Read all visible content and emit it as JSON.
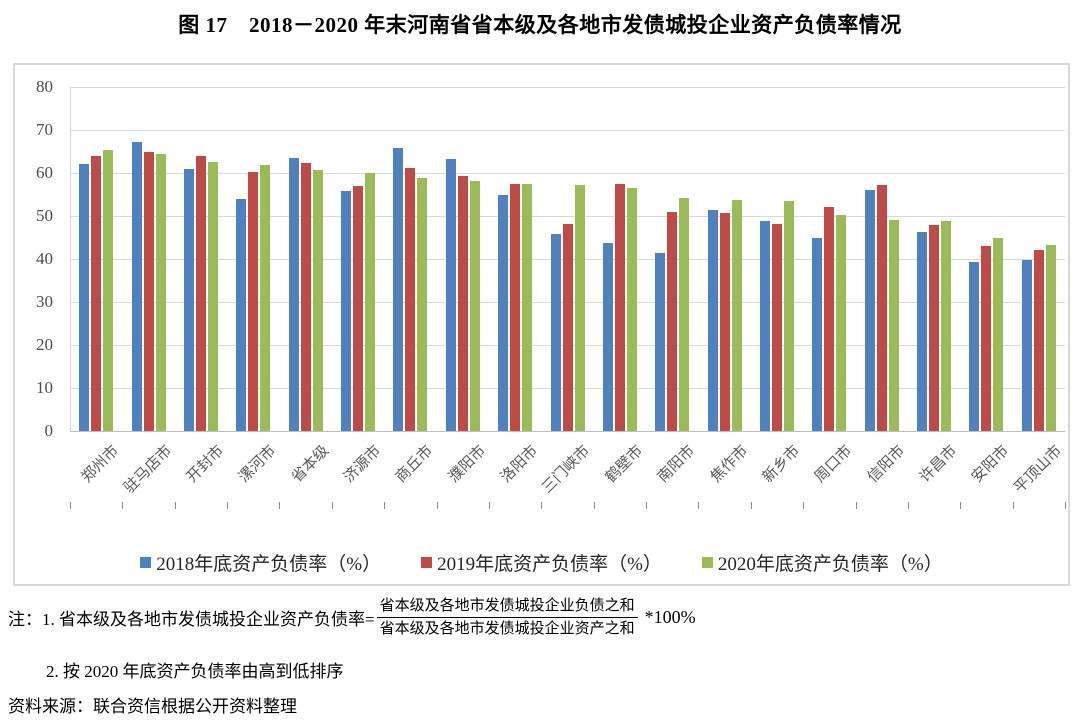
{
  "title": "图 17　2018－2020 年末河南省省本级及各地市发债城投企业资产负债率情况",
  "chart_data": {
    "type": "bar",
    "categories": [
      "郑州市",
      "驻马店市",
      "开封市",
      "漯河市",
      "省本级",
      "济源市",
      "商丘市",
      "濮阳市",
      "洛阳市",
      "三门峡市",
      "鹤壁市",
      "南阳市",
      "焦作市",
      "新乡市",
      "周口市",
      "信阳市",
      "许昌市",
      "安阳市",
      "平顶山市"
    ],
    "series": [
      {
        "name": "2018年底资产负债率（%）",
        "color": "#4F81BD",
        "values": [
          62.1,
          67.2,
          61.0,
          54.0,
          63.5,
          55.8,
          65.8,
          63.2,
          54.8,
          45.7,
          43.8,
          41.5,
          51.5,
          48.9,
          45.0,
          56.1,
          46.3,
          39.2,
          39.8
        ]
      },
      {
        "name": "2019年底资产负债率（%）",
        "color": "#BE4B48",
        "values": [
          63.9,
          64.9,
          63.9,
          60.2,
          62.4,
          56.9,
          61.2,
          59.3,
          57.4,
          48.2,
          57.4,
          50.9,
          50.6,
          48.1,
          52.1,
          57.3,
          48.0,
          43.0,
          42.2
        ]
      },
      {
        "name": "2020年底资产负债率（%）",
        "color": "#9BBB59",
        "values": [
          65.3,
          64.4,
          62.5,
          61.8,
          60.8,
          60.1,
          58.8,
          58.2,
          57.4,
          57.2,
          56.4,
          54.2,
          53.8,
          53.6,
          50.2,
          49.1,
          48.8,
          45.0,
          43.2
        ]
      }
    ],
    "title": "图 17　2018－2020 年末河南省省本级及各地市发债城投企业资产负债率情况",
    "xlabel": "",
    "ylabel": "",
    "ylim": [
      0,
      80
    ],
    "ytick_step": 10,
    "grid": true,
    "legend_position": "bottom"
  },
  "notes": {
    "note1_prefix": "注：1. 省本级及各地市发债城投企业资产负债率=",
    "fraction_numerator": "省本级及各地市发债城投企业负债之和",
    "fraction_denominator": "省本级及各地市发债城投企业资产之和",
    "note1_suffix": "*100%",
    "note2": "2. 按 2020 年底资产负债率由高到低排序",
    "source": "资料来源：联合资信根据公开资料整理"
  }
}
